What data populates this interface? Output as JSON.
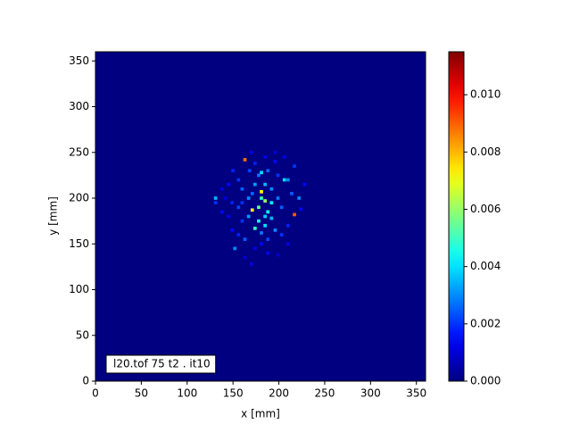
{
  "chart_data": {
    "type": "heatmap",
    "xlabel": "x [mm]",
    "ylabel": "y [mm]",
    "annotation": "l20.tof 75 t2 .  it10",
    "colormap": "jet",
    "bin_size": 3.6,
    "xlim": [
      0,
      360
    ],
    "ylim": [
      0,
      360
    ],
    "xticks": [
      0,
      50,
      100,
      150,
      200,
      250,
      300,
      350
    ],
    "yticks": [
      0,
      50,
      100,
      150,
      200,
      250,
      300,
      350
    ],
    "clim": [
      0,
      0.0115
    ],
    "cticks": [
      {
        "value": 0,
        "label": "0.000"
      },
      {
        "value": 0.002,
        "label": "0.002"
      },
      {
        "value": 0.004,
        "label": "0.004"
      },
      {
        "value": 0.006,
        "label": "0.006"
      },
      {
        "value": 0.008,
        "label": "0.008"
      },
      {
        "value": 0.01,
        "label": "0.010"
      }
    ],
    "cells": {
      "x": [
        163,
        217,
        181,
        171,
        185,
        178,
        188,
        174,
        185,
        192,
        167,
        160,
        156,
        150,
        145,
        131,
        131,
        138,
        206,
        210,
        199,
        214,
        222,
        228,
        217,
        196,
        185,
        174,
        168,
        178,
        185,
        192,
        199,
        203,
        196,
        203,
        210,
        188,
        181,
        174,
        163,
        156,
        152,
        149,
        160,
        167,
        156,
        145,
        142,
        170,
        163,
        170,
        199,
        210,
        181,
        174,
        188,
        196,
        206,
        224,
        178,
        185,
        171,
        160,
        192,
        181,
        188,
        149,
        138,
        181
      ],
      "y": [
        242,
        182,
        207,
        187,
        197,
        190,
        185,
        167,
        170,
        178,
        200,
        210,
        220,
        230,
        215,
        200,
        195,
        185,
        220,
        220,
        225,
        205,
        200,
        215,
        235,
        240,
        245,
        238,
        230,
        225,
        215,
        210,
        200,
        190,
        165,
        160,
        170,
        155,
        150,
        145,
        155,
        160,
        145,
        165,
        175,
        180,
        190,
        180,
        200,
        250,
        135,
        128,
        138,
        150,
        228,
        215,
        230,
        250,
        245,
        188,
        175,
        180,
        205,
        195,
        195,
        162,
        140,
        195,
        210,
        200
      ],
      "values": [
        0.0088,
        0.009,
        0.0072,
        0.007,
        0.006,
        0.0055,
        0.0045,
        0.005,
        0.004,
        0.0035,
        0.003,
        0.0025,
        0.002,
        0.0018,
        0.0015,
        0.0035,
        0.002,
        0.0015,
        0.004,
        0.003,
        0.002,
        0.0025,
        0.003,
        0.0015,
        0.002,
        0.0015,
        0.0012,
        0.0018,
        0.0022,
        0.0028,
        0.0035,
        0.003,
        0.0028,
        0.0025,
        0.003,
        0.002,
        0.0018,
        0.0022,
        0.0015,
        0.0012,
        0.0025,
        0.0018,
        0.003,
        0.0015,
        0.002,
        0.0032,
        0.0022,
        0.0012,
        0.001,
        0.0012,
        0.001,
        0.0012,
        0.001,
        0.0012,
        0.004,
        0.0032,
        0.0026,
        0.001,
        0.0012,
        0.0015,
        0.0045,
        0.0038,
        0.0026,
        0.002,
        0.0042,
        0.0028,
        0.0015,
        0.0018,
        0.0012,
        0.005
      ]
    }
  }
}
